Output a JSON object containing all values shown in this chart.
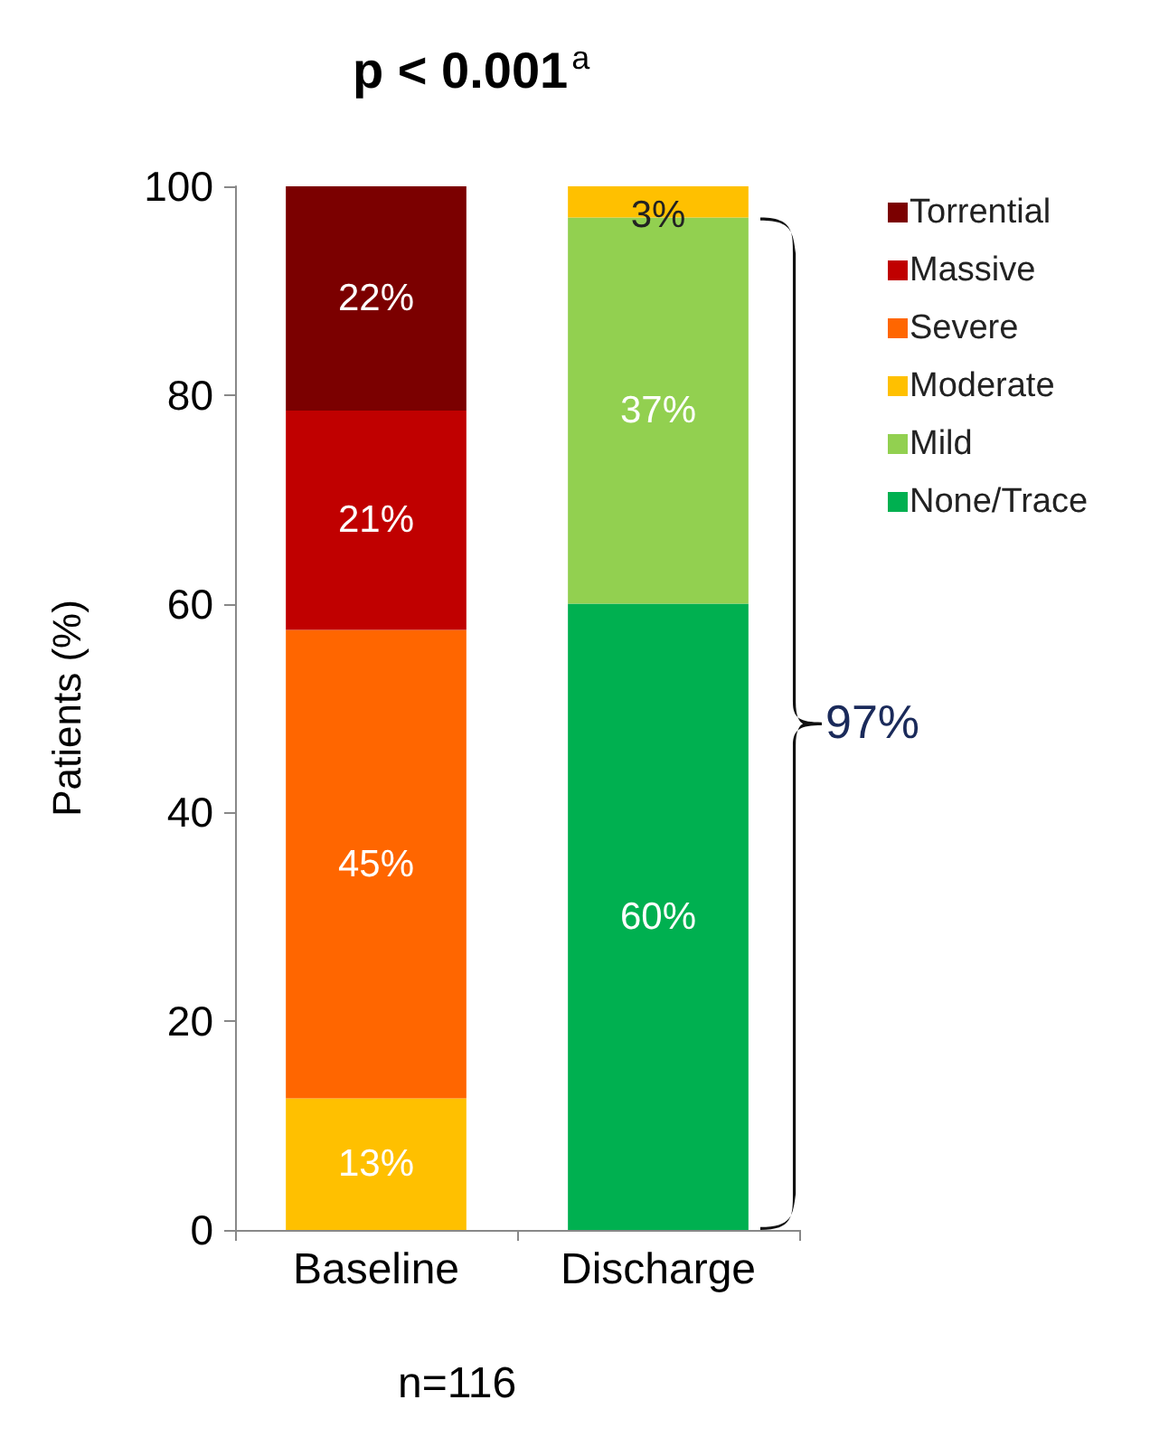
{
  "chart_data": {
    "type": "bar",
    "title": "p < 0.001$^{a}$",
    "ylabel": "Patients (%)",
    "categories": [
      "Baseline",
      "Discharge"
    ],
    "stacked": true,
    "ylim": [
      0,
      100
    ],
    "yticks": [
      0,
      20,
      40,
      60,
      80,
      100
    ],
    "grid": false,
    "legend": "top right",
    "series": [
      {
        "name": "None/Trace",
        "color": "#00b050",
        "values": [
          null,
          60
        ],
        "value_labels": [
          null,
          "60%"
        ]
      },
      {
        "name": "Mild",
        "color": "#92d050",
        "values": [
          null,
          37
        ],
        "value_labels": [
          null,
          "37%"
        ]
      },
      {
        "name": "Moderate",
        "color": "#ffc000",
        "values": [
          12.6,
          3
        ],
        "value_labels": [
          "13%",
          "3%"
        ]
      },
      {
        "name": "Severe",
        "color": "#ff6600",
        "values": [
          44.9,
          null
        ],
        "value_labels": [
          "45%",
          null
        ]
      },
      {
        "name": "Massive",
        "color": "#c00000",
        "values": [
          21,
          null
        ],
        "value_labels": [
          "21%",
          null
        ]
      },
      {
        "name": "Torrential",
        "color": "#7b0000",
        "values": [
          21.5,
          null
        ],
        "value_labels": [
          "22%",
          null
        ]
      }
    ],
    "annotations": [
      "97%",
      "n=116"
    ]
  }
}
